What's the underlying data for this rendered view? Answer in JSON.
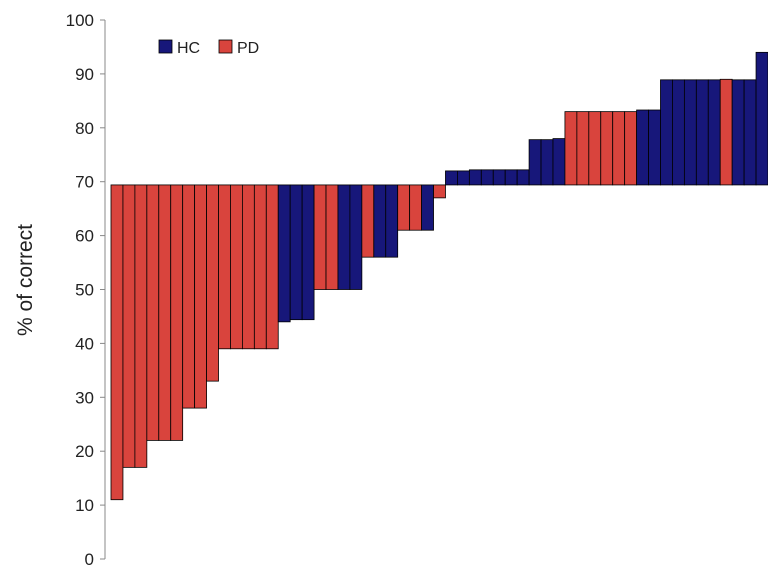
{
  "chart_data": {
    "type": "bar",
    "baseline": 69.4,
    "ylabel": "% of correct",
    "ylim": [
      0,
      100
    ],
    "yticks": [
      "0",
      "10",
      "20",
      "30",
      "40",
      "50",
      "60",
      "70",
      "80",
      "90",
      "100"
    ],
    "legend": [
      {
        "name": "HC",
        "color": "#17177a"
      },
      {
        "name": "PD",
        "color": "#d9443d"
      }
    ],
    "legend_position": "top-left",
    "grid": false,
    "bars": [
      {
        "group": "PD",
        "value": 11
      },
      {
        "group": "PD",
        "value": 17
      },
      {
        "group": "PD",
        "value": 17
      },
      {
        "group": "PD",
        "value": 22
      },
      {
        "group": "PD",
        "value": 22
      },
      {
        "group": "PD",
        "value": 22
      },
      {
        "group": "PD",
        "value": 28
      },
      {
        "group": "PD",
        "value": 28
      },
      {
        "group": "PD",
        "value": 33
      },
      {
        "group": "PD",
        "value": 39
      },
      {
        "group": "PD",
        "value": 39
      },
      {
        "group": "PD",
        "value": 39
      },
      {
        "group": "PD",
        "value": 39
      },
      {
        "group": "PD",
        "value": 39
      },
      {
        "group": "HC",
        "value": 44
      },
      {
        "group": "HC",
        "value": 44.4
      },
      {
        "group": "HC",
        "value": 44.4
      },
      {
        "group": "PD",
        "value": 50
      },
      {
        "group": "PD",
        "value": 50
      },
      {
        "group": "HC",
        "value": 50
      },
      {
        "group": "HC",
        "value": 50
      },
      {
        "group": "PD",
        "value": 56
      },
      {
        "group": "HC",
        "value": 56
      },
      {
        "group": "HC",
        "value": 56
      },
      {
        "group": "PD",
        "value": 61
      },
      {
        "group": "PD",
        "value": 61
      },
      {
        "group": "HC",
        "value": 61
      },
      {
        "group": "PD",
        "value": 67
      },
      {
        "group": "HC",
        "value": 72
      },
      {
        "group": "HC",
        "value": 72
      },
      {
        "group": "HC",
        "value": 72.2
      },
      {
        "group": "HC",
        "value": 72.2
      },
      {
        "group": "HC",
        "value": 72.2
      },
      {
        "group": "HC",
        "value": 72.2
      },
      {
        "group": "HC",
        "value": 72.2
      },
      {
        "group": "HC",
        "value": 77.8
      },
      {
        "group": "HC",
        "value": 77.8
      },
      {
        "group": "HC",
        "value": 78
      },
      {
        "group": "PD",
        "value": 83
      },
      {
        "group": "PD",
        "value": 83
      },
      {
        "group": "PD",
        "value": 83
      },
      {
        "group": "PD",
        "value": 83
      },
      {
        "group": "PD",
        "value": 83
      },
      {
        "group": "PD",
        "value": 83
      },
      {
        "group": "HC",
        "value": 83.3
      },
      {
        "group": "HC",
        "value": 83.3
      },
      {
        "group": "HC",
        "value": 88.9
      },
      {
        "group": "HC",
        "value": 88.9
      },
      {
        "group": "HC",
        "value": 88.9
      },
      {
        "group": "HC",
        "value": 88.9
      },
      {
        "group": "HC",
        "value": 88.9
      },
      {
        "group": "PD",
        "value": 89
      },
      {
        "group": "HC",
        "value": 88.9
      },
      {
        "group": "HC",
        "value": 88.9
      },
      {
        "group": "HC",
        "value": 94
      }
    ]
  }
}
